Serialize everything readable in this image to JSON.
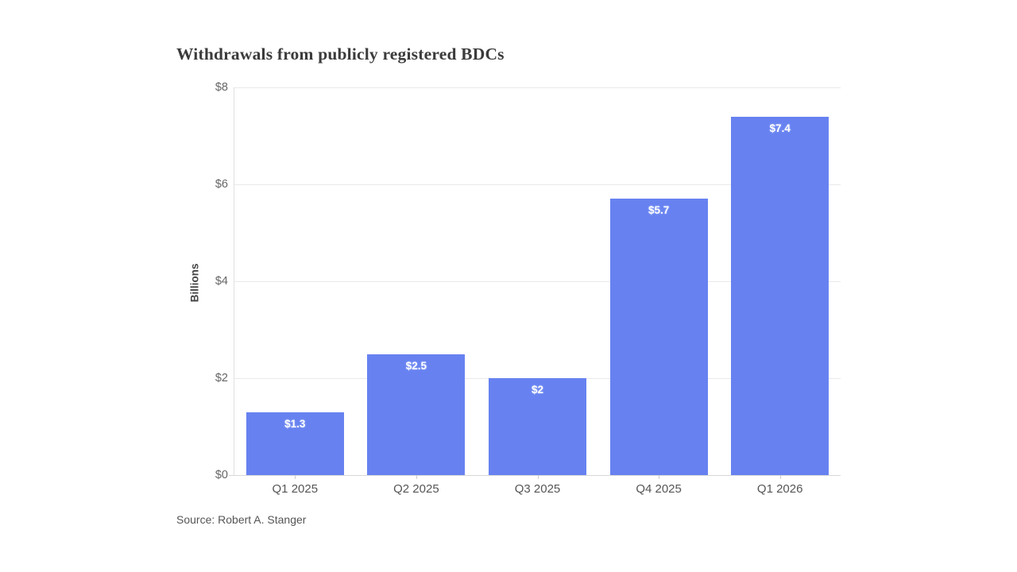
{
  "chart": {
    "title": "Withdrawals from publicly registered BDCs",
    "y_axis_label": "Billions",
    "source": "Source: Robert A. Stanger"
  },
  "chart_data": {
    "type": "bar",
    "title": "Withdrawals from publicly registered BDCs",
    "categories": [
      "Q1 2025",
      "Q2 2025",
      "Q3 2025",
      "Q4 2025",
      "Q1 2026"
    ],
    "values": [
      1.3,
      2.5,
      2.0,
      5.7,
      7.4
    ],
    "data_labels": [
      "$1.3",
      "$2.5",
      "$2",
      "$5.7",
      "$7.4"
    ],
    "xlabel": "",
    "ylabel": "Billions",
    "ylim": [
      0,
      8
    ],
    "y_ticks": [
      {
        "value": 0,
        "label": "$0"
      },
      {
        "value": 2,
        "label": "$2"
      },
      {
        "value": 4,
        "label": "$4"
      },
      {
        "value": 6,
        "label": "$6"
      },
      {
        "value": 8,
        "label": "$8"
      }
    ],
    "grid": true,
    "legend": false,
    "bar_color": "#6782f0",
    "label_color": "#ffffff",
    "source": "Source: Robert A. Stanger"
  }
}
